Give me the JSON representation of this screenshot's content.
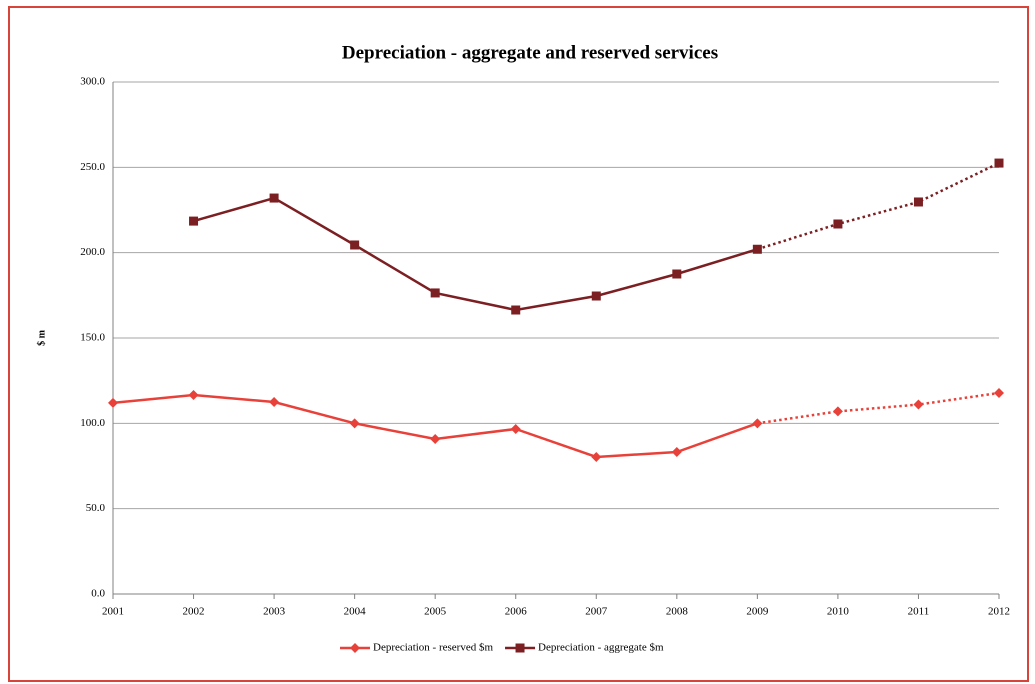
{
  "chart_data": {
    "type": "line",
    "title": "Depreciation - aggregate and reserved services",
    "y_label": "$ m",
    "categories": [
      "2001",
      "2002",
      "2003",
      "2004",
      "2005",
      "2006",
      "2007",
      "2008",
      "2009",
      "2010",
      "2011",
      "2012"
    ],
    "dashed_from": "2009",
    "series": [
      {
        "name": "Depreciation - reserved $m",
        "color": "#e8413a",
        "marker": "diamond",
        "values": [
          112,
          116.6,
          112.5,
          100,
          90.8,
          96.7,
          80.3,
          83.2,
          100,
          107,
          111,
          117.8
        ]
      },
      {
        "name": "Depreciation - aggregate $m",
        "color": "#7b1f22",
        "marker": "square",
        "values": [
          null,
          218.5,
          232,
          204.5,
          176.4,
          166.4,
          174.6,
          187.5,
          202,
          216.8,
          229.7,
          252.5
        ]
      }
    ],
    "ylim": [
      0,
      300
    ],
    "yticks": [
      {
        "value": 0,
        "label": "0.0"
      },
      {
        "value": 50,
        "label": "50.0"
      },
      {
        "value": 100,
        "label": "100.0"
      },
      {
        "value": 150,
        "label": "150.0"
      },
      {
        "value": 200,
        "label": "200.0"
      },
      {
        "value": 250,
        "label": "250.0"
      },
      {
        "value": 300,
        "label": "300.0"
      }
    ],
    "grid": true,
    "legend": "bottom"
  }
}
